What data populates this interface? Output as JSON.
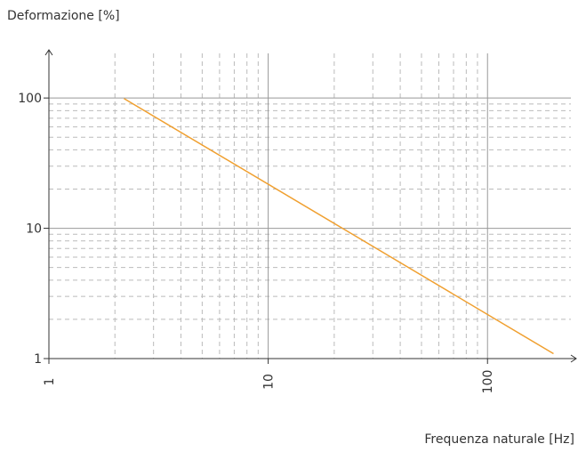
{
  "chart_data": {
    "type": "line",
    "y_label": "Deformazione [%]",
    "x_label": "Frequenza naturale [Hz]",
    "x": [
      2.2,
      200
    ],
    "series": [
      {
        "name": "Deformazione",
        "color": "#f0a030",
        "values": [
          99,
          1.09
        ]
      }
    ],
    "xlim": [
      1,
      240
    ],
    "ylim": [
      1,
      220
    ],
    "xticks": [
      1,
      10,
      100
    ],
    "yticks": [
      1,
      10,
      100
    ],
    "log_x": true,
    "log_y": true,
    "grid": true
  }
}
